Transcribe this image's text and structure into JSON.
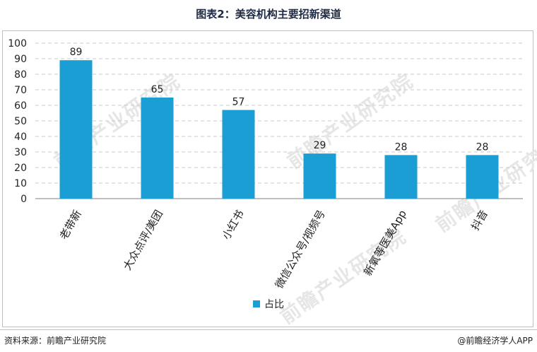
{
  "header": {
    "title": "图表2：美容机构主要招新渠道"
  },
  "footer": {
    "source": "资料来源：前瞻产业研究院",
    "brand": "@前瞻经济学人APP"
  },
  "watermark_text": "前瞻产业研究院",
  "colors": {
    "bar": "#1a9ed4",
    "grid": "#c8c8c8",
    "axis": "#7f7f7f"
  },
  "chart_data": {
    "type": "bar",
    "title": "",
    "xlabel": "",
    "ylabel": "",
    "ylim": [
      0,
      100
    ],
    "yticks": [
      0,
      10,
      20,
      30,
      40,
      50,
      60,
      70,
      80,
      90,
      100
    ],
    "categories": [
      "老带新",
      "大众点评/美团",
      "小红书",
      "微信公众号/视频号",
      "新氧等医美App",
      "抖音"
    ],
    "series": [
      {
        "name": "占比",
        "values": [
          89,
          65,
          57,
          29,
          28,
          28
        ]
      }
    ],
    "grid": true,
    "legend": "bottom"
  }
}
